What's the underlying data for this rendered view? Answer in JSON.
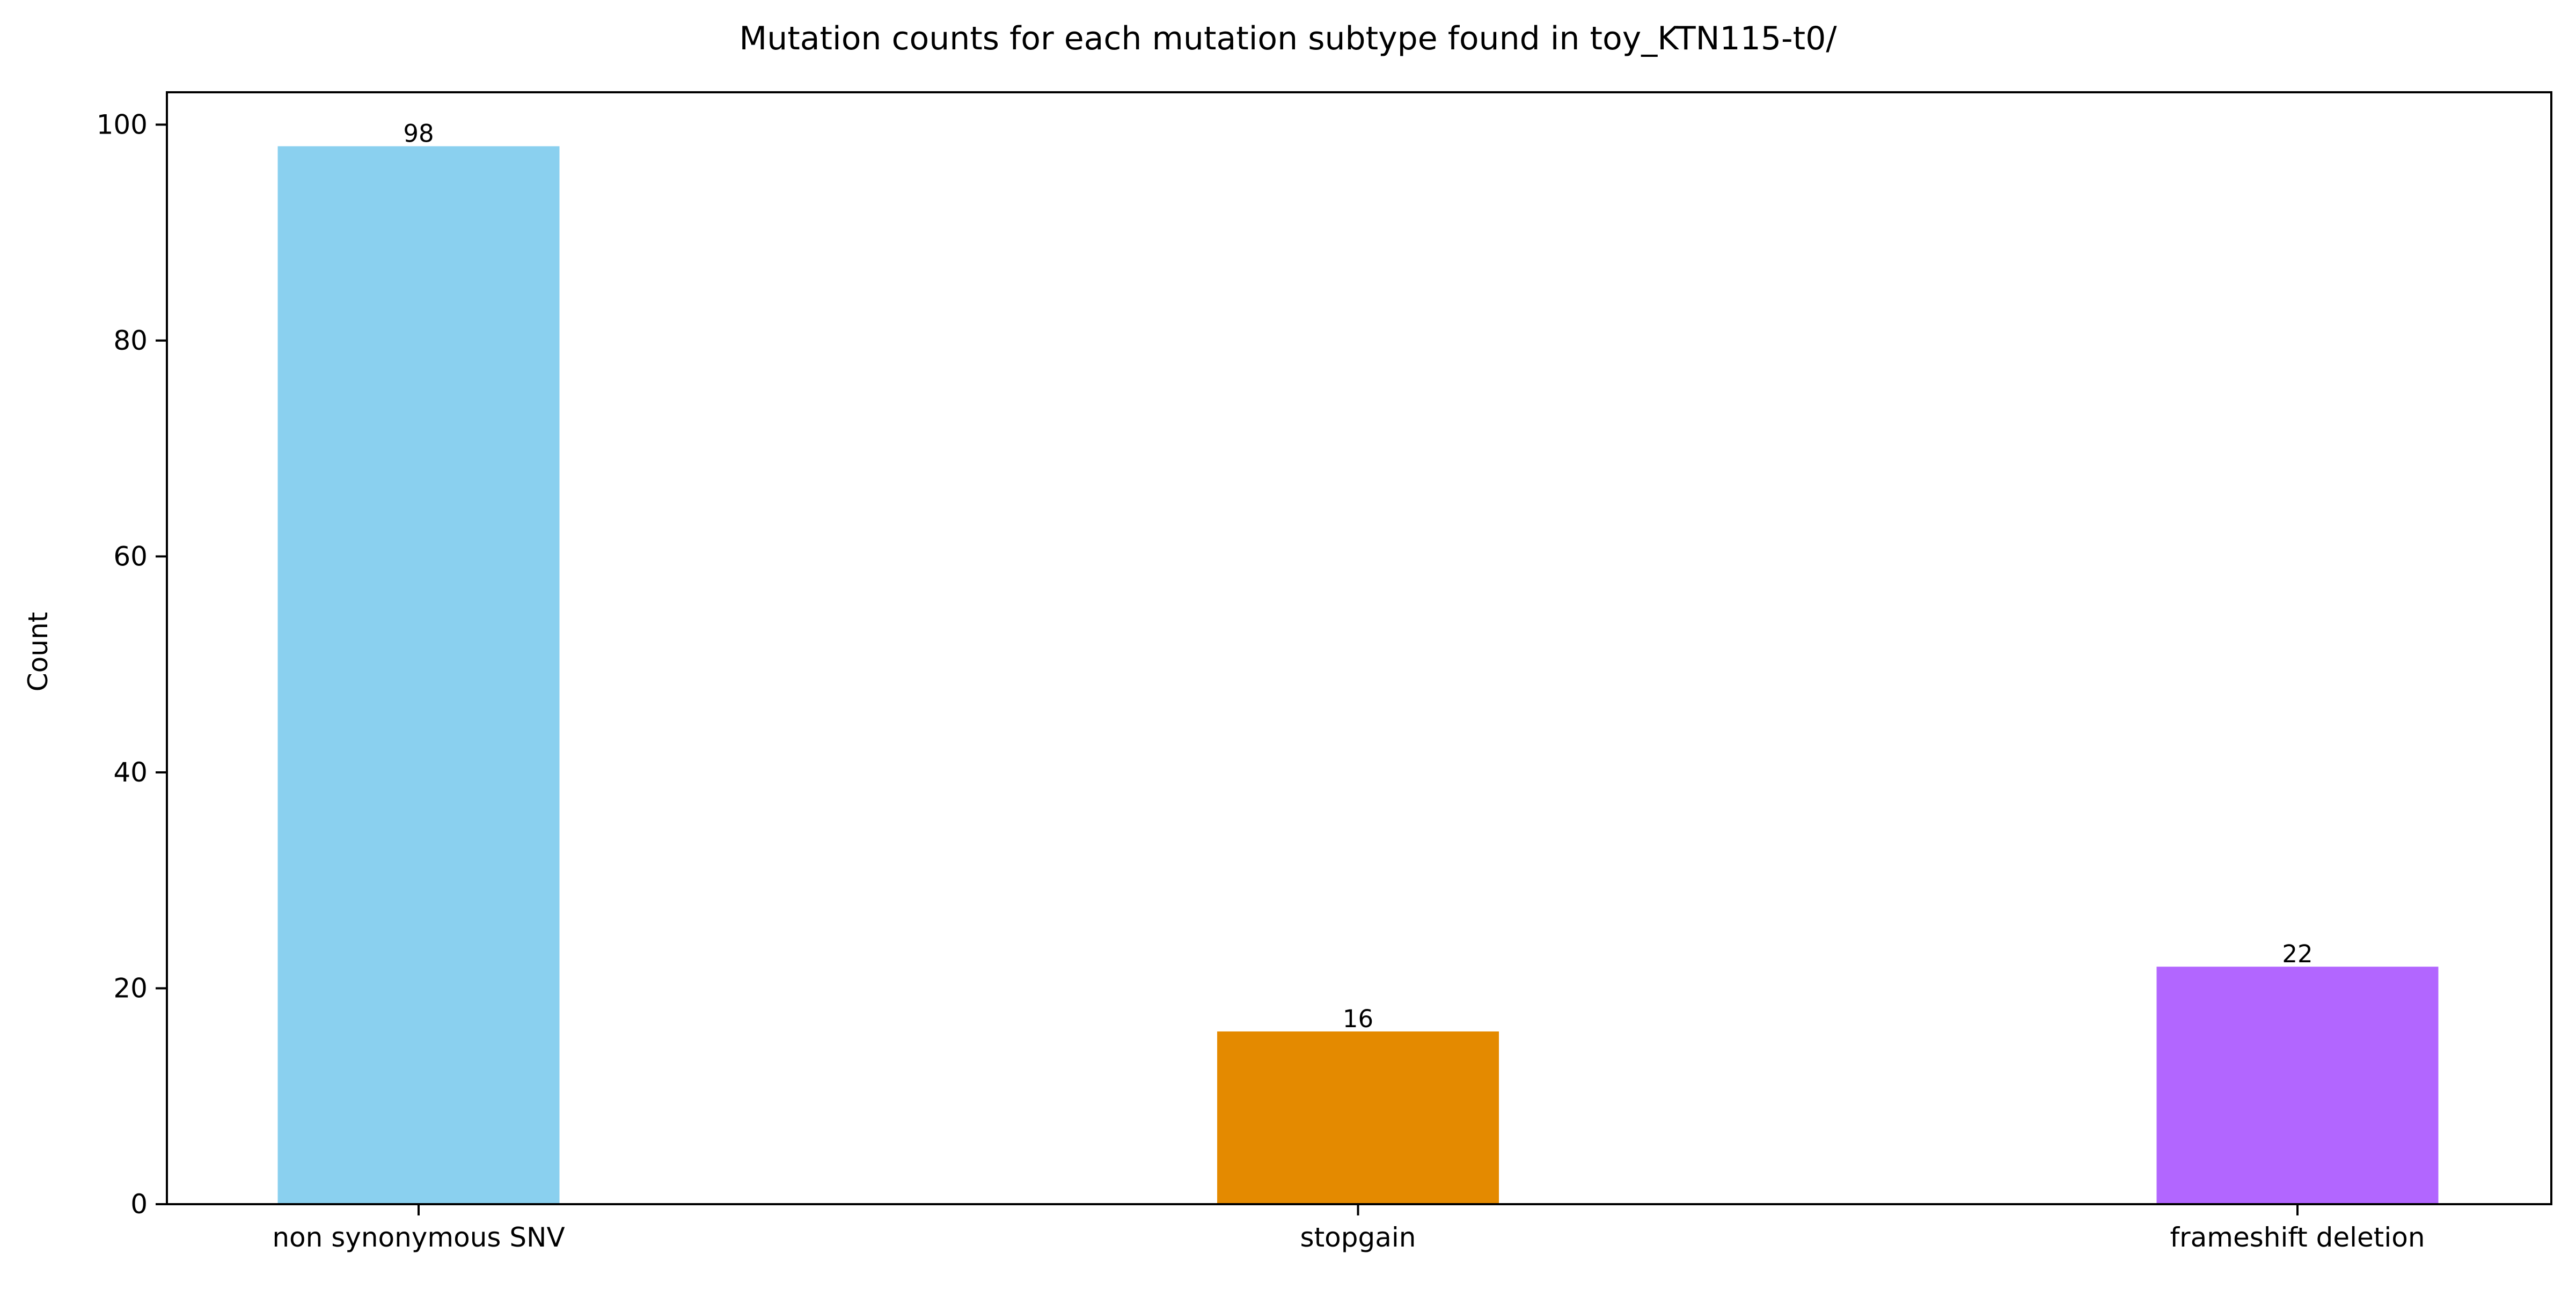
{
  "chart_data": {
    "type": "bar",
    "title": "Mutation counts for each mutation subtype found in toy_KTN115-t0/",
    "xlabel": "",
    "ylabel": "Count",
    "categories": [
      "non synonymous SNV",
      "stopgain",
      "frameshift deletion"
    ],
    "values": [
      98,
      16,
      22
    ],
    "colors": [
      "#8ad0ef",
      "#e48a00",
      "#b266ff"
    ],
    "ylim": [
      0,
      103
    ],
    "yticks": [
      0,
      20,
      40,
      60,
      80,
      100
    ],
    "grid": false,
    "legend": "none",
    "show_data_labels": true
  }
}
